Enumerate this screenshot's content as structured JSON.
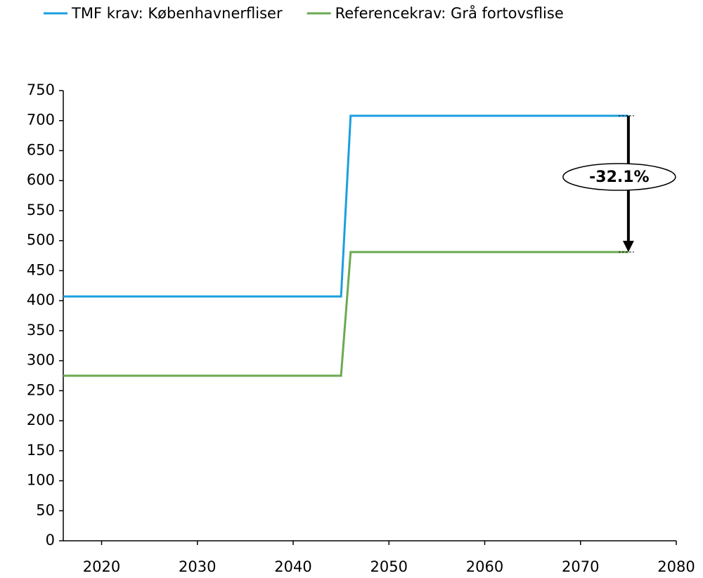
{
  "chart_data": {
    "type": "line",
    "x": [
      2016,
      2045,
      2046,
      2075
    ],
    "series": [
      {
        "name": "TMF krav: Københavnerfliser",
        "color": "#1a9fe0",
        "values": [
          407,
          407,
          708,
          708
        ]
      },
      {
        "name": "Referencekrav: Grå fortovsflise",
        "color": "#6aaa50",
        "values": [
          275,
          275,
          481,
          481
        ]
      }
    ],
    "xlim": [
      2016,
      2080
    ],
    "xticks": [
      2020,
      2030,
      2040,
      2050,
      2060,
      2070,
      2080
    ],
    "ylim": [
      0,
      750
    ],
    "yticks": [
      0,
      50,
      100,
      150,
      200,
      250,
      300,
      350,
      400,
      450,
      500,
      550,
      600,
      650,
      700,
      750
    ],
    "annotation": "-32.1%",
    "legend": "top"
  }
}
